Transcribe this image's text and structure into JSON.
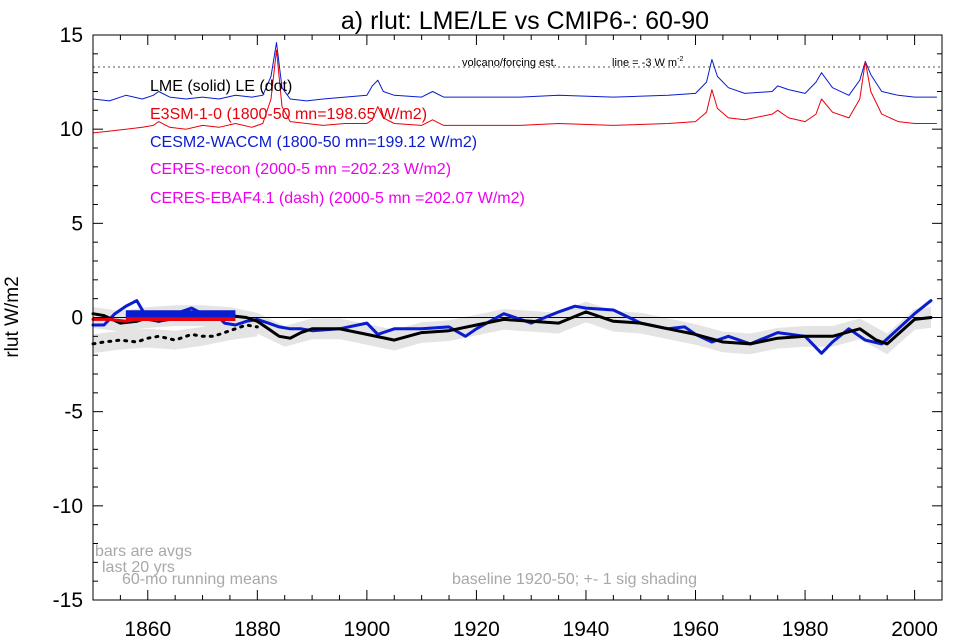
{
  "chart_data": {
    "type": "line",
    "title": "a) rlut: LME/LE vs CMIP6-: 60-90",
    "ylabel": "rlut W/m2",
    "xlabel": "",
    "xlim": [
      1850,
      2005
    ],
    "ylim": [
      -15,
      15
    ],
    "x_ticks": [
      1860,
      1880,
      1900,
      1920,
      1940,
      1960,
      1980,
      2000
    ],
    "y_ticks": [
      -15,
      -10,
      -5,
      0,
      5,
      10,
      15
    ],
    "legend": [
      {
        "text": "LME (solid)   LE (dot)",
        "color": "#000000"
      },
      {
        "text": "E3SM-1-0 (1800-50 mn=198.65 W/m2)",
        "color": "#e8000b"
      },
      {
        "text": "CESM2-WACCM (1800-50 mn=199.12 W/m2)",
        "color": "#0a1cd0"
      },
      {
        "text": "CERES-recon (2000-5 mn =202.23 W/m2)",
        "color": "#ee00ee"
      },
      {
        "text": "CERES-EBAF4.1 (dash) (2000-5 mn =202.07 W/m2)",
        "color": "#ee00ee"
      }
    ],
    "annotations": {
      "volcano": "volcano/forcing est.",
      "line_note": "line = -3 W m",
      "line_note_sup": "-2",
      "bars_note": [
        "bars are avgs",
        "last 20 yrs"
      ],
      "running": "60-mo running means",
      "baseline": "baseline 1920-50; +- 1 sig shading"
    },
    "reference_line_y": 13.3,
    "series": [
      {
        "name": "CESM2-WACCM",
        "color": "#0a1cd0",
        "x": [
          1850,
          1852,
          1854,
          1856,
          1858,
          1860,
          1862,
          1864,
          1866,
          1868,
          1870,
          1872,
          1874,
          1876,
          1878,
          1880,
          1882,
          1884,
          1886,
          1888,
          1890,
          1895,
          1900,
          1902,
          1905,
          1910,
          1915,
          1918,
          1920,
          1925,
          1930,
          1935,
          1938,
          1940,
          1945,
          1950,
          1955,
          1958,
          1960,
          1963,
          1966,
          1970,
          1975,
          1980,
          1983,
          1985,
          1988,
          1991,
          1994,
          1997,
          2000,
          2003
        ],
        "y": [
          -0.4,
          -0.4,
          0.2,
          0.6,
          0.9,
          -0.1,
          -0.2,
          -0.1,
          0.3,
          0.5,
          0.2,
          0.3,
          -0.3,
          -0.4,
          -0.2,
          -0.1,
          -0.3,
          -0.5,
          -0.6,
          -0.6,
          -0.7,
          -0.6,
          -0.3,
          -0.9,
          -0.6,
          -0.6,
          -0.5,
          -1.0,
          -0.6,
          0.2,
          -0.3,
          0.3,
          0.6,
          0.5,
          0.4,
          -0.3,
          -0.6,
          -0.5,
          -0.9,
          -1.3,
          -1.0,
          -1.4,
          -0.8,
          -1.0,
          -1.9,
          -1.3,
          -0.6,
          -1.2,
          -1.4,
          -0.6,
          0.2,
          0.9
        ]
      },
      {
        "name": "LME (solid)",
        "color": "#000000",
        "x": [
          1850,
          1852,
          1855,
          1858,
          1860,
          1862,
          1865,
          1868,
          1870,
          1872,
          1875,
          1878,
          1880,
          1882,
          1884,
          1886,
          1888,
          1890,
          1895,
          1900,
          1905,
          1910,
          1915,
          1920,
          1925,
          1930,
          1935,
          1940,
          1945,
          1950,
          1955,
          1960,
          1965,
          1970,
          1975,
          1980,
          1985,
          1990,
          1993,
          1995,
          2000,
          2003
        ],
        "y": [
          0.2,
          0.1,
          -0.3,
          -0.2,
          0.0,
          -0.2,
          0.2,
          -0.1,
          0.2,
          0.0,
          0.1,
          0.0,
          -0.2,
          -0.6,
          -1.0,
          -1.1,
          -0.8,
          -0.6,
          -0.6,
          -0.9,
          -1.2,
          -0.8,
          -0.7,
          -0.4,
          -0.1,
          -0.2,
          -0.3,
          0.3,
          -0.2,
          -0.3,
          -0.6,
          -0.9,
          -1.3,
          -1.4,
          -1.1,
          -1.0,
          -1.0,
          -0.6,
          -1.2,
          -1.4,
          -0.1,
          0.0
        ]
      },
      {
        "name": "LE (dot)",
        "color": "#000000",
        "dotted": true,
        "x": [
          1850,
          1852,
          1855,
          1858,
          1860,
          1862,
          1865,
          1868,
          1870,
          1872,
          1875,
          1878,
          1880
        ],
        "y": [
          -1.4,
          -1.3,
          -1.2,
          -1.3,
          -1.1,
          -1.0,
          -1.2,
          -0.9,
          -1.0,
          -1.0,
          -0.7,
          -0.4,
          -0.5
        ]
      },
      {
        "name": "E3SM-1-0",
        "color": "#e8000b",
        "x": [
          1850,
          1853,
          1856,
          1858,
          1860,
          1862,
          1864,
          1866
        ],
        "y": [
          -0.1,
          -0.1,
          -0.2,
          -0.1,
          0.1,
          0.0,
          0.0,
          0.0
        ]
      },
      {
        "name": "CESM2 volcanic forcing",
        "color": "#0a1cd0",
        "thin": true,
        "x": [
          1850,
          1853,
          1856,
          1859,
          1861,
          1862,
          1864,
          1867,
          1870,
          1873,
          1876,
          1879,
          1881,
          1882.5,
          1883.5,
          1884.5,
          1886,
          1889,
          1892,
          1896,
          1900,
          1901,
          1902,
          1903,
          1905,
          1910,
          1912,
          1914,
          1920,
          1928,
          1935,
          1945,
          1955,
          1960,
          1962,
          1963,
          1964,
          1966,
          1969,
          1974,
          1975,
          1977,
          1980,
          1982,
          1983,
          1985,
          1988,
          1990,
          1991,
          1992,
          1994,
          1997,
          2000,
          2004
        ],
        "y": [
          11.6,
          11.5,
          11.8,
          11.6,
          11.8,
          12.0,
          11.7,
          11.6,
          11.7,
          11.6,
          11.8,
          11.7,
          11.8,
          12.8,
          14.6,
          12.2,
          11.6,
          11.5,
          11.6,
          11.7,
          11.8,
          12.3,
          12.6,
          12.0,
          11.8,
          11.7,
          12.0,
          11.7,
          11.7,
          11.7,
          11.8,
          11.7,
          11.8,
          11.9,
          12.5,
          13.7,
          12.8,
          12.2,
          11.9,
          12.0,
          12.3,
          12.1,
          11.9,
          12.5,
          13.0,
          12.2,
          11.8,
          12.6,
          13.6,
          12.9,
          12.0,
          11.8,
          11.7,
          11.7
        ]
      },
      {
        "name": "E3SM volcanic forcing",
        "color": "#e8000b",
        "thin": true,
        "x": [
          1850,
          1853,
          1856,
          1859,
          1861,
          1862,
          1864,
          1867,
          1870,
          1873,
          1876,
          1879,
          1881,
          1882.5,
          1883.5,
          1884.5,
          1886,
          1889,
          1892,
          1896,
          1900,
          1901,
          1902,
          1903,
          1905,
          1910,
          1912,
          1914,
          1920,
          1928,
          1935,
          1945,
          1955,
          1960,
          1962,
          1963,
          1964,
          1966,
          1969,
          1974,
          1975,
          1977,
          1980,
          1982,
          1983,
          1985,
          1988,
          1990,
          1991,
          1992,
          1994,
          1997,
          2000,
          2004
        ],
        "y": [
          9.8,
          9.9,
          10.0,
          10.1,
          10.2,
          10.4,
          10.1,
          10.0,
          10.2,
          10.1,
          10.3,
          10.1,
          10.3,
          11.6,
          14.2,
          11.2,
          10.4,
          10.3,
          10.2,
          10.3,
          10.3,
          10.5,
          11.2,
          10.6,
          10.3,
          10.2,
          10.5,
          10.2,
          10.2,
          10.2,
          10.3,
          10.2,
          10.3,
          10.4,
          10.9,
          12.1,
          11.1,
          10.6,
          10.5,
          10.8,
          11.0,
          10.6,
          10.4,
          10.8,
          11.6,
          10.9,
          10.6,
          11.6,
          13.6,
          12.0,
          10.8,
          10.4,
          10.3,
          10.3
        ]
      }
    ],
    "shading": {
      "x": [
        1850,
        1855,
        1860,
        1865,
        1870,
        1875,
        1880,
        1885,
        1890,
        1895,
        1900,
        1905,
        1910,
        1915,
        1920,
        1925,
        1930,
        1935,
        1940,
        1945,
        1950,
        1955,
        1960,
        1965,
        1970,
        1975,
        1980,
        1985,
        1990,
        1995,
        2000,
        2003
      ],
      "center": [
        0.0,
        -0.2,
        0.0,
        0.1,
        0.1,
        0.0,
        -0.3,
        -1.0,
        -0.6,
        -0.6,
        -0.9,
        -1.2,
        -0.8,
        -0.7,
        -0.4,
        -0.1,
        -0.2,
        -0.3,
        0.3,
        -0.2,
        -0.3,
        -0.6,
        -0.9,
        -1.3,
        -1.4,
        -1.1,
        -1.0,
        -1.0,
        -0.6,
        -1.4,
        -0.1,
        0.0
      ],
      "half_width": 0.55,
      "le_x": [
        1850,
        1855,
        1860,
        1865,
        1870,
        1875,
        1880
      ],
      "le_center": [
        -1.4,
        -1.2,
        -1.1,
        -1.2,
        -1.0,
        -0.7,
        -0.5
      ],
      "le_half_width": 0.5
    },
    "bars": [
      {
        "name": "E3SM-1-0",
        "color": "#e8000b",
        "x_start": 1856,
        "x_end": 1876,
        "y": 0.0
      },
      {
        "name": "CESM2-WACCM",
        "color": "#0a1cd0",
        "x_start": 1856,
        "x_end": 1876,
        "y": 0.2
      }
    ]
  }
}
